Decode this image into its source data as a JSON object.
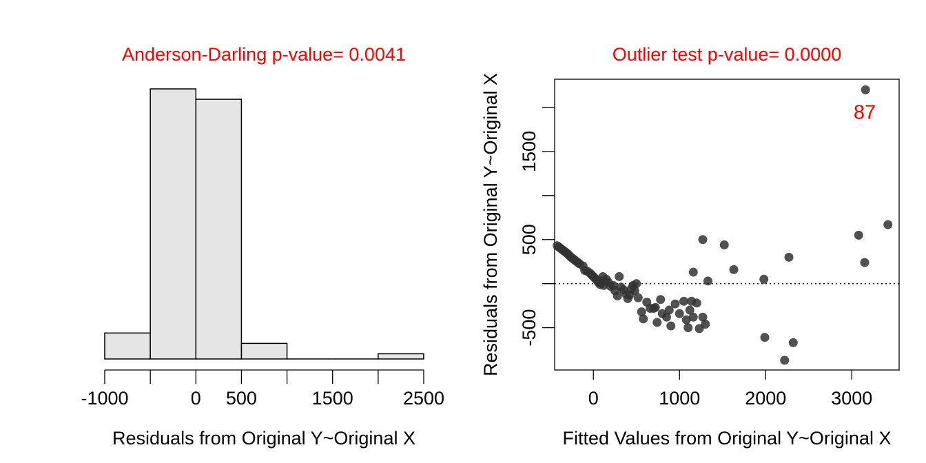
{
  "chart_data": [
    {
      "type": "bar",
      "title": "Anderson-Darling p-value= 0.0041",
      "title_color": "#ff0000",
      "xlabel": "Residuals from Original Y~Original X",
      "ylabel": "",
      "bin_edges": [
        -1000,
        -500,
        0,
        500,
        1000,
        1500,
        2000,
        2500
      ],
      "counts": [
        5,
        52,
        50,
        3,
        0,
        0,
        1
      ],
      "ylim": [
        0,
        52
      ],
      "xticks": [
        -1000,
        -500,
        0,
        500,
        1000,
        1500,
        2000,
        2500
      ],
      "xtick_labels": [
        {
          "value": -1000,
          "label": "-1000"
        },
        {
          "value": 0,
          "label": "0"
        },
        {
          "value": 500,
          "label": "500"
        },
        {
          "value": 1500,
          "label": "1500"
        },
        {
          "value": 2500,
          "label": "2500"
        }
      ],
      "bar_fill": "#e5e5e5",
      "bar_stroke": "#000000"
    },
    {
      "type": "scatter",
      "title": "Outlier test p-value= 0.0000",
      "title_color": "#ff0000",
      "xlabel": "Fitted Values from Original Y~Original X",
      "ylabel": "Residuals from Original Y~Original X",
      "xlim": [
        -450,
        3550
      ],
      "ylim": [
        -980,
        2320
      ],
      "xticks": [
        0,
        1000,
        2000,
        3000
      ],
      "yticks": [
        -500,
        500,
        1500
      ],
      "y_minor_ticks": [
        -500,
        0,
        500,
        1000,
        1500,
        2000
      ],
      "reference_line_y": 0,
      "point_color": "#333333",
      "annotations": [
        {
          "text": "87",
          "x": 3150,
          "y": 1950,
          "color": "#ff0000"
        }
      ],
      "points": [
        [
          -420,
          430
        ],
        [
          -400,
          415
        ],
        [
          -380,
          400
        ],
        [
          -360,
          385
        ],
        [
          -340,
          370
        ],
        [
          -320,
          355
        ],
        [
          -300,
          340
        ],
        [
          -280,
          320
        ],
        [
          -260,
          300
        ],
        [
          -240,
          285
        ],
        [
          -220,
          270
        ],
        [
          -200,
          255
        ],
        [
          -180,
          240
        ],
        [
          -160,
          225
        ],
        [
          -120,
          200
        ],
        [
          -100,
          150
        ],
        [
          -70,
          140
        ],
        [
          -40,
          120
        ],
        [
          -20,
          100
        ],
        [
          0,
          80
        ],
        [
          20,
          60
        ],
        [
          40,
          40
        ],
        [
          60,
          10
        ],
        [
          80,
          -10
        ],
        [
          100,
          30
        ],
        [
          110,
          80
        ],
        [
          120,
          -20
        ],
        [
          150,
          50
        ],
        [
          170,
          20
        ],
        [
          200,
          -30
        ],
        [
          230,
          -20
        ],
        [
          250,
          -80
        ],
        [
          280,
          -140
        ],
        [
          300,
          80
        ],
        [
          320,
          -40
        ],
        [
          350,
          -70
        ],
        [
          380,
          -120
        ],
        [
          400,
          -170
        ],
        [
          420,
          -130
        ],
        [
          440,
          -60
        ],
        [
          460,
          -20
        ],
        [
          480,
          -80
        ],
        [
          500,
          0
        ],
        [
          520,
          -160
        ],
        [
          560,
          -320
        ],
        [
          580,
          -400
        ],
        [
          620,
          -210
        ],
        [
          660,
          -280
        ],
        [
          700,
          -280
        ],
        [
          720,
          -270
        ],
        [
          740,
          -440
        ],
        [
          780,
          -180
        ],
        [
          800,
          -340
        ],
        [
          850,
          -380
        ],
        [
          880,
          -300
        ],
        [
          900,
          -480
        ],
        [
          950,
          -230
        ],
        [
          1000,
          -340
        ],
        [
          1050,
          -200
        ],
        [
          1080,
          -410
        ],
        [
          1100,
          -500
        ],
        [
          1120,
          -300
        ],
        [
          1140,
          -200
        ],
        [
          1160,
          -380
        ],
        [
          1200,
          -220
        ],
        [
          1230,
          -510
        ],
        [
          1270,
          -380
        ],
        [
          1300,
          -460
        ],
        [
          1160,
          130
        ],
        [
          1270,
          500
        ],
        [
          1330,
          30
        ],
        [
          1520,
          440
        ],
        [
          1630,
          160
        ],
        [
          1980,
          50
        ],
        [
          1990,
          -610
        ],
        [
          2220,
          -870
        ],
        [
          2270,
          300
        ],
        [
          2320,
          -670
        ],
        [
          3080,
          550
        ],
        [
          3150,
          240
        ],
        [
          3420,
          670
        ],
        [
          3160,
          2200
        ]
      ]
    }
  ]
}
